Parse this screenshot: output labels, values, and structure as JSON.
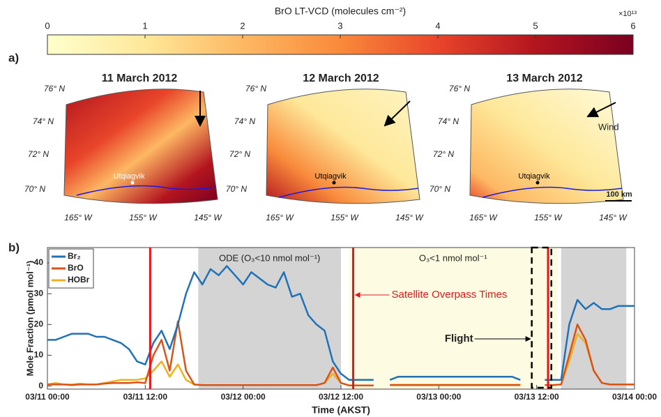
{
  "chart_data": [
    {
      "type": "map",
      "panel_label": "a)",
      "colorbar_label": "BrO LT-VCD (molecules cm⁻²)",
      "clim": [
        0,
        6
      ],
      "ticks": [
        0,
        1,
        2,
        3,
        4,
        5,
        6
      ],
      "exponent_label": "×10¹³",
      "colormap": [
        "#ffffcc",
        "#fee89a",
        "#fdb863",
        "#f98a3b",
        "#e8452a",
        "#b3151f",
        "#7a0020"
      ],
      "maps": [
        {
          "title": "11 March 2012",
          "lat_labels": [
            "76° N",
            "74° N",
            "72° N",
            "70° N"
          ],
          "lon_labels": [
            "165° W",
            "155° W",
            "145° W"
          ],
          "town": "Utqiagvik"
        },
        {
          "title": "12 March 2012",
          "lat_labels": [
            "76° N",
            "74° N",
            "72° N",
            "70° N"
          ],
          "lon_labels": [
            "165° W",
            "155° W",
            "145° W"
          ],
          "town": "Utqiagvik"
        },
        {
          "title": "13 March 2012",
          "lat_labels": [
            "76° N",
            "74° N",
            "72° N",
            "70° N"
          ],
          "lon_labels": [
            "165° W",
            "155° W",
            "145° W"
          ],
          "town": "Utqiagvik",
          "wind_label": "Wind",
          "scale_label": "100 km"
        }
      ]
    },
    {
      "type": "line",
      "panel_label": "b)",
      "xlabel": "Time (AKST)",
      "ylabel": "Mole Fraction (pmol mol⁻¹)",
      "xlim": [
        0,
        72
      ],
      "ylim": [
        -1,
        45
      ],
      "xticks": [
        {
          "value": 0,
          "label": "03/11 00:00"
        },
        {
          "value": 12,
          "label": "03/11 12:00"
        },
        {
          "value": 24,
          "label": "03/12 00:00"
        },
        {
          "value": 36,
          "label": "03/12 12:00"
        },
        {
          "value": 48,
          "label": "03/13 00:00"
        },
        {
          "value": 60,
          "label": "03/13 12:00"
        },
        {
          "value": 72,
          "label": "03/14 00:00"
        }
      ],
      "yticks": [
        0,
        10,
        20,
        30,
        40
      ],
      "x": [
        0,
        1,
        2,
        3,
        4,
        5,
        6,
        7,
        8,
        9,
        10,
        11,
        12,
        13,
        14,
        15,
        16,
        17,
        18,
        19,
        20,
        21,
        22,
        23,
        24,
        25,
        26,
        27,
        28,
        29,
        30,
        31,
        32,
        33,
        34,
        35,
        36,
        37,
        38,
        39,
        40,
        41,
        42,
        43,
        44,
        45,
        46,
        47,
        48,
        49,
        50,
        51,
        52,
        53,
        54,
        55,
        56,
        57,
        58,
        59,
        60,
        61,
        62,
        63,
        64,
        65,
        66,
        67,
        68,
        69,
        70,
        71,
        72
      ],
      "series": [
        {
          "name": "Br₂",
          "color": "#1f72b8",
          "values": [
            15,
            15,
            16,
            17,
            17,
            17,
            16,
            16,
            15,
            14,
            12,
            8,
            7,
            14,
            18,
            12,
            20,
            30,
            37,
            33,
            38,
            36,
            39,
            36,
            33,
            37,
            35,
            33,
            32,
            37,
            29,
            30,
            23,
            20,
            18,
            8,
            4,
            2,
            2,
            2,
            2,
            null,
            2,
            3,
            3,
            3,
            3,
            3,
            3,
            3,
            3,
            3,
            3,
            3,
            3,
            3,
            3,
            3,
            2,
            null,
            null,
            2,
            2,
            2,
            20,
            28,
            25,
            27,
            25,
            25,
            26,
            26,
            26
          ]
        },
        {
          "name": "BrO",
          "color": "#d95319",
          "values": [
            0.5,
            0.5,
            0.5,
            0.3,
            0.5,
            0.5,
            0.5,
            0.8,
            1,
            1,
            1,
            1.2,
            1,
            10,
            15,
            5,
            21,
            5,
            0.5,
            0.3,
            0.3,
            0.3,
            0.3,
            0.3,
            0.3,
            0.3,
            0.3,
            0.3,
            0.3,
            0.3,
            0.3,
            0.3,
            0.3,
            0.3,
            1,
            6,
            1,
            0.2,
            0.2,
            0.2,
            0.2,
            null,
            0.3,
            0.3,
            0.3,
            0.3,
            0.3,
            0.3,
            0.3,
            0.3,
            0.3,
            0.3,
            0.3,
            0.3,
            0.3,
            0.3,
            0.3,
            0.3,
            0.3,
            null,
            null,
            0.3,
            0.3,
            0.5,
            10,
            20,
            15,
            5,
            1,
            0.5,
            0.5,
            0.5,
            0.5
          ]
        },
        {
          "name": "HOBr",
          "color": "#edb120",
          "values": [
            0.5,
            1,
            0.5,
            0.5,
            0.8,
            0.5,
            0.5,
            1,
            1.5,
            2,
            2,
            2,
            2.5,
            5,
            8,
            3,
            7,
            2,
            0.5,
            0.3,
            0.3,
            0.3,
            0.3,
            0.3,
            0.3,
            0.3,
            0.3,
            0.3,
            0.3,
            0.3,
            0.3,
            0.3,
            0.3,
            0.3,
            1,
            4,
            1,
            0.2,
            0.2,
            0.2,
            0.2,
            null,
            0.4,
            0.4,
            0.4,
            0.4,
            0.4,
            0.4,
            0.4,
            0.4,
            0.4,
            0.4,
            0.4,
            0.4,
            0.4,
            0.4,
            0.4,
            0.4,
            0.4,
            null,
            null,
            0.3,
            0.3,
            0.5,
            8,
            17,
            14,
            5,
            1,
            0.5,
            0.5,
            0.5,
            0.5
          ]
        }
      ],
      "shaded_regions": [
        {
          "start": 18.5,
          "end": 36,
          "color": "#d4d4d4",
          "label": "ODE (O₃<10 nmol mol⁻¹)"
        },
        {
          "start": 37,
          "end": 62.5,
          "color": "#fdfbe1",
          "label": "O₃<1 nmol mol⁻¹"
        },
        {
          "start": 63,
          "end": 71,
          "color": "#d4d4d4"
        }
      ],
      "overpass_times": [
        12.6,
        37.5,
        61.4
      ],
      "overpass_color": "#e8141a",
      "overpass_label": "Satellite Overpass Times",
      "flight": [
        59.4,
        61.8
      ],
      "flight_label": "Flight",
      "legend": "upper left"
    }
  ]
}
